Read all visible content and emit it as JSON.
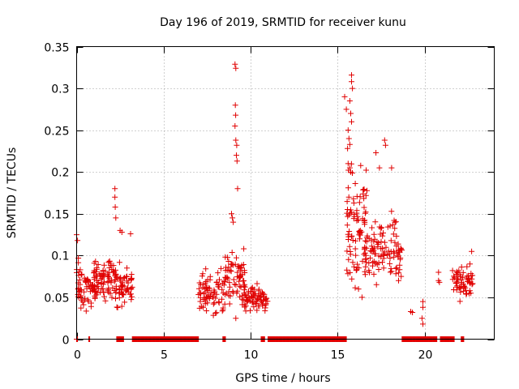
{
  "chart_data": {
    "type": "scatter",
    "title": "Day 196 of 2019, SRMTID for receiver kunu",
    "xlabel": "GPS time / hours",
    "ylabel": "SRMTID / TECUs",
    "xlim": [
      0,
      24
    ],
    "ylim": [
      0,
      0.35
    ],
    "xticks": [
      0,
      5,
      10,
      15,
      20
    ],
    "xtick_labels": [
      "0",
      "5",
      "10",
      "15",
      "20"
    ],
    "yticks": [
      0,
      0.05,
      0.1,
      0.15,
      0.2,
      0.25,
      0.3,
      0.35
    ],
    "ytick_labels": [
      "0",
      "0.05",
      "0.1",
      "0.15",
      "0.2",
      "0.25",
      "0.3",
      "0.35"
    ],
    "grid": true,
    "marker": "plus",
    "series_color": "#e00000",
    "zero_segments": [
      [
        0.0,
        0.05
      ],
      [
        0.7,
        0.75
      ],
      [
        2.3,
        2.7
      ],
      [
        3.2,
        7.0
      ],
      [
        8.4,
        8.55
      ],
      [
        10.6,
        10.8
      ],
      [
        11.0,
        15.5
      ],
      [
        18.7,
        20.7
      ],
      [
        20.9,
        21.7
      ],
      [
        22.1,
        22.25
      ]
    ],
    "clusters": [
      {
        "x0": 0.0,
        "x1": 1.2,
        "base": 0.06,
        "spread": 0.028,
        "n": 70
      },
      {
        "x0": 1.0,
        "x1": 2.3,
        "base": 0.072,
        "spread": 0.024,
        "n": 80
      },
      {
        "x0": 2.2,
        "x1": 3.2,
        "base": 0.065,
        "spread": 0.026,
        "n": 55
      },
      {
        "x0": 7.0,
        "x1": 8.5,
        "base": 0.055,
        "spread": 0.026,
        "n": 75
      },
      {
        "x0": 8.5,
        "x1": 9.7,
        "base": 0.075,
        "spread": 0.032,
        "n": 70
      },
      {
        "x0": 9.5,
        "x1": 11.0,
        "base": 0.048,
        "spread": 0.016,
        "n": 70
      },
      {
        "x0": 15.5,
        "x1": 16.7,
        "base": 0.14,
        "spread": 0.07,
        "n": 90
      },
      {
        "x0": 16.5,
        "x1": 18.7,
        "base": 0.11,
        "spread": 0.04,
        "n": 110
      },
      {
        "x0": 21.6,
        "x1": 22.8,
        "base": 0.068,
        "spread": 0.02,
        "n": 60
      }
    ],
    "points": [
      {
        "x": 0.0,
        "y": 0.125
      },
      {
        "x": 0.05,
        "y": 0.118
      },
      {
        "x": 0.1,
        "y": 0.097
      },
      {
        "x": 2.2,
        "y": 0.18
      },
      {
        "x": 2.2,
        "y": 0.17
      },
      {
        "x": 2.22,
        "y": 0.158
      },
      {
        "x": 2.25,
        "y": 0.145
      },
      {
        "x": 2.5,
        "y": 0.13
      },
      {
        "x": 2.6,
        "y": 0.128
      },
      {
        "x": 3.1,
        "y": 0.126
      },
      {
        "x": 8.9,
        "y": 0.15
      },
      {
        "x": 8.95,
        "y": 0.145
      },
      {
        "x": 9.0,
        "y": 0.14
      },
      {
        "x": 9.1,
        "y": 0.329
      },
      {
        "x": 9.15,
        "y": 0.324
      },
      {
        "x": 9.12,
        "y": 0.28
      },
      {
        "x": 9.14,
        "y": 0.268
      },
      {
        "x": 9.1,
        "y": 0.255
      },
      {
        "x": 9.15,
        "y": 0.238
      },
      {
        "x": 9.2,
        "y": 0.232
      },
      {
        "x": 9.18,
        "y": 0.22
      },
      {
        "x": 9.22,
        "y": 0.213
      },
      {
        "x": 9.25,
        "y": 0.18
      },
      {
        "x": 9.15,
        "y": 0.025
      },
      {
        "x": 15.4,
        "y": 0.29
      },
      {
        "x": 15.5,
        "y": 0.275
      },
      {
        "x": 15.7,
        "y": 0.285
      },
      {
        "x": 15.6,
        "y": 0.25
      },
      {
        "x": 15.65,
        "y": 0.24
      },
      {
        "x": 15.7,
        "y": 0.233
      },
      {
        "x": 15.8,
        "y": 0.316
      },
      {
        "x": 15.8,
        "y": 0.308
      },
      {
        "x": 15.85,
        "y": 0.3
      },
      {
        "x": 15.75,
        "y": 0.27
      },
      {
        "x": 15.8,
        "y": 0.26
      },
      {
        "x": 15.6,
        "y": 0.21
      },
      {
        "x": 15.7,
        "y": 0.205
      },
      {
        "x": 15.75,
        "y": 0.2
      },
      {
        "x": 16.2,
        "y": 0.06
      },
      {
        "x": 16.4,
        "y": 0.05
      },
      {
        "x": 17.2,
        "y": 0.223
      },
      {
        "x": 17.4,
        "y": 0.205
      },
      {
        "x": 17.7,
        "y": 0.238
      },
      {
        "x": 17.75,
        "y": 0.232
      },
      {
        "x": 18.1,
        "y": 0.205
      },
      {
        "x": 18.3,
        "y": 0.14
      },
      {
        "x": 18.5,
        "y": 0.07
      },
      {
        "x": 19.2,
        "y": 0.033
      },
      {
        "x": 19.3,
        "y": 0.032
      },
      {
        "x": 19.9,
        "y": 0.045
      },
      {
        "x": 19.9,
        "y": 0.038
      },
      {
        "x": 19.85,
        "y": 0.025
      },
      {
        "x": 19.9,
        "y": 0.018
      },
      {
        "x": 20.8,
        "y": 0.08
      },
      {
        "x": 20.8,
        "y": 0.07
      },
      {
        "x": 20.85,
        "y": 0.068
      },
      {
        "x": 22.7,
        "y": 0.105
      },
      {
        "x": 22.6,
        "y": 0.09
      }
    ]
  }
}
